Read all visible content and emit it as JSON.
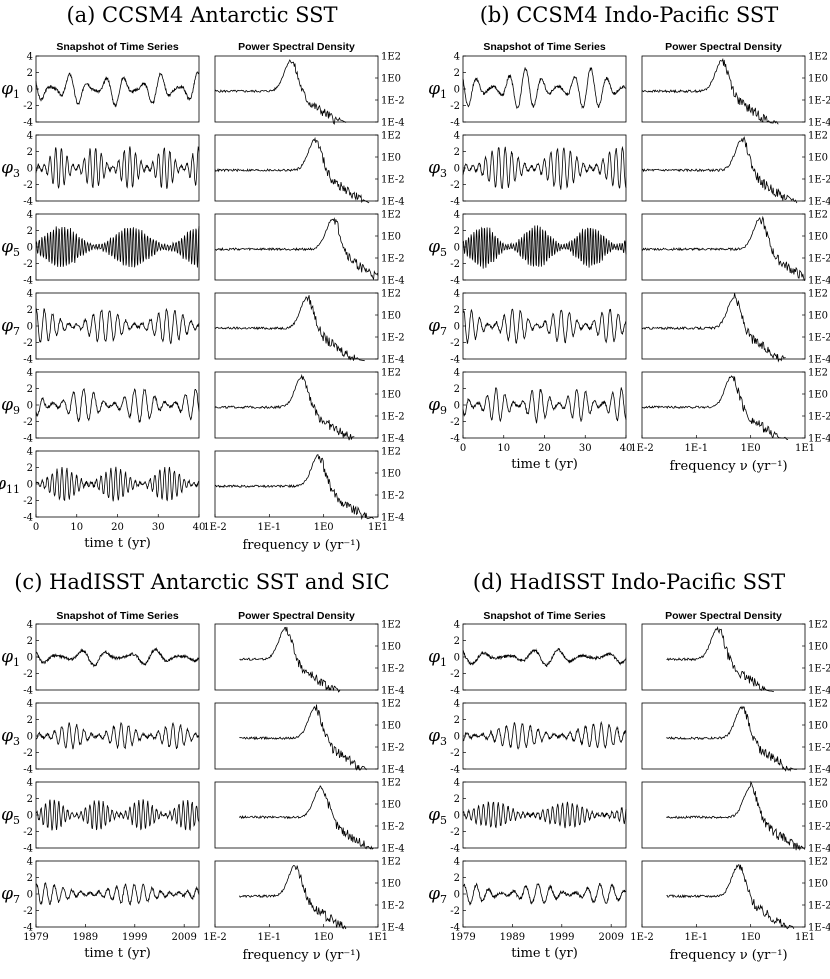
{
  "panels": [
    {
      "id": "a",
      "title": "(a) CCSM4 Antarctic SST",
      "ts_title": "Snapshot of Time Series",
      "psd_title": "Power Spectral Density",
      "time_axis": {
        "label": "time t (yr)",
        "ticks": [
          "0",
          "10",
          "20",
          "30",
          "40"
        ]
      },
      "freq_axis": {
        "label": "frequency ν (yr⁻¹)",
        "ticks": [
          "1E-2",
          "1E-1",
          "1E0",
          "1E1"
        ]
      },
      "modes": [
        "1",
        "3",
        "5",
        "7",
        "9",
        "11"
      ]
    },
    {
      "id": "b",
      "title": "(b) CCSM4 Indo-Pacific SST",
      "ts_title": "Snapshot of Time Series",
      "psd_title": "Power Spectral Density",
      "time_axis": {
        "label": "time t (yr)",
        "ticks": [
          "0",
          "10",
          "20",
          "30",
          "40"
        ]
      },
      "freq_axis": {
        "label": "frequency ν (yr⁻¹)",
        "ticks": [
          "1E-2",
          "1E-1",
          "1E0",
          "1E1"
        ]
      },
      "modes": [
        "1",
        "3",
        "5",
        "7",
        "9"
      ]
    },
    {
      "id": "c",
      "title": "(c) HadISST Antarctic SST and SIC",
      "ts_title": "Snapshot of Time Series",
      "psd_title": "Power Spectral Density",
      "time_axis": {
        "label": "time t (yr)",
        "ticks": [
          "1979",
          "1989",
          "1999",
          "2009"
        ]
      },
      "freq_axis": {
        "label": "frequency ν (yr⁻¹)",
        "ticks": [
          "1E-2",
          "1E-1",
          "1E0",
          "1E1"
        ]
      },
      "modes": [
        "1",
        "3",
        "5",
        "7"
      ]
    },
    {
      "id": "d",
      "title": "(d) HadISST Indo-Pacific SST",
      "ts_title": "Snapshot of Time Series",
      "psd_title": "Power Spectral Density",
      "time_axis": {
        "label": "time t (yr)",
        "ticks": [
          "1979",
          "1989",
          "1999",
          "2009"
        ]
      },
      "freq_axis": {
        "label": "frequency ν (yr⁻¹)",
        "ticks": [
          "1E-2",
          "1E-1",
          "1E0",
          "1E1"
        ]
      },
      "modes": [
        "1",
        "3",
        "5",
        "7"
      ]
    }
  ],
  "y_ticks_ts": [
    "4",
    "2",
    "0",
    "-2",
    "-4"
  ],
  "y_ticks_psd": [
    "1E2",
    "1E0",
    "1E-2",
    "1E-4"
  ],
  "phi_symbol": "φ",
  "chart_data": [
    {
      "type": "line",
      "title": "(a) CCSM4 Antarctic SST",
      "xlabel": "time t (yr)",
      "ylabel": "φ",
      "xlim": [
        0,
        40
      ],
      "ylim": [
        -4,
        4
      ],
      "series": [
        {
          "name": "φ1",
          "period_yr": 4.5,
          "amplitude": 2
        },
        {
          "name": "φ3",
          "period_yr": 1.4,
          "amplitude": 2.5
        },
        {
          "name": "φ5",
          "period_yr": 0.7,
          "amplitude": 2.5
        },
        {
          "name": "φ7",
          "period_yr": 2.0,
          "amplitude": 2
        },
        {
          "name": "φ9",
          "period_yr": 2.5,
          "amplitude": 2
        },
        {
          "name": "φ11",
          "period_yr": 1.2,
          "amplitude": 2
        }
      ],
      "psd_peaks_per_yr": [
        0.25,
        0.7,
        1.5,
        0.5,
        0.4,
        0.8
      ],
      "psd_xlim": [
        0.01,
        10
      ],
      "psd_ylim": [
        0.0001,
        100
      ],
      "psd_scale": "log"
    },
    {
      "type": "line",
      "title": "(b) CCSM4 Indo-Pacific SST",
      "xlabel": "time t (yr)",
      "ylabel": "φ",
      "xlim": [
        0,
        40
      ],
      "ylim": [
        -4,
        4
      ],
      "series": [
        {
          "name": "φ1",
          "period_yr": 4.0,
          "amplitude": 2.5
        },
        {
          "name": "φ3",
          "period_yr": 1.6,
          "amplitude": 2.5
        },
        {
          "name": "φ5",
          "period_yr": 0.65,
          "amplitude": 2.5
        },
        {
          "name": "φ7",
          "period_yr": 2.0,
          "amplitude": 2
        },
        {
          "name": "φ9",
          "period_yr": 2.2,
          "amplitude": 2
        }
      ],
      "psd_peaks_per_yr": [
        0.3,
        0.7,
        1.5,
        0.5,
        0.45
      ],
      "psd_xlim": [
        0.01,
        10
      ],
      "psd_ylim": [
        0.0001,
        100
      ],
      "psd_scale": "log"
    },
    {
      "type": "line",
      "title": "(c) HadISST Antarctic SST and SIC",
      "xlabel": "time t (yr)",
      "ylabel": "φ",
      "xlim": [
        1979,
        2012
      ],
      "ylim": [
        -4,
        4
      ],
      "series": [
        {
          "name": "φ1",
          "period_yr": 5.0,
          "amplitude": 1
        },
        {
          "name": "φ3",
          "period_yr": 1.5,
          "amplitude": 1.5
        },
        {
          "name": "φ5",
          "period_yr": 0.9,
          "amplitude": 1.8
        },
        {
          "name": "φ7",
          "period_yr": 1.8,
          "amplitude": 1.2
        }
      ],
      "psd_peaks_per_yr": [
        0.2,
        0.7,
        0.9,
        0.3
      ],
      "psd_xlim": [
        0.01,
        10
      ],
      "psd_ylim": [
        0.0001,
        100
      ],
      "psd_scale": "log"
    },
    {
      "type": "line",
      "title": "(d) HadISST Indo-Pacific SST",
      "xlabel": "time t (yr)",
      "ylabel": "φ",
      "xlim": [
        1979,
        2012
      ],
      "ylim": [
        -4,
        4
      ],
      "series": [
        {
          "name": "φ1",
          "period_yr": 5.0,
          "amplitude": 1
        },
        {
          "name": "φ3",
          "period_yr": 1.6,
          "amplitude": 1.5
        },
        {
          "name": "φ5",
          "period_yr": 1.0,
          "amplitude": 1.5
        },
        {
          "name": "φ7",
          "period_yr": 2.5,
          "amplitude": 1.2
        }
      ],
      "psd_peaks_per_yr": [
        0.25,
        0.7,
        1.0,
        0.6
      ],
      "psd_xlim": [
        0.01,
        10
      ],
      "psd_ylim": [
        0.0001,
        100
      ],
      "psd_scale": "log"
    }
  ]
}
